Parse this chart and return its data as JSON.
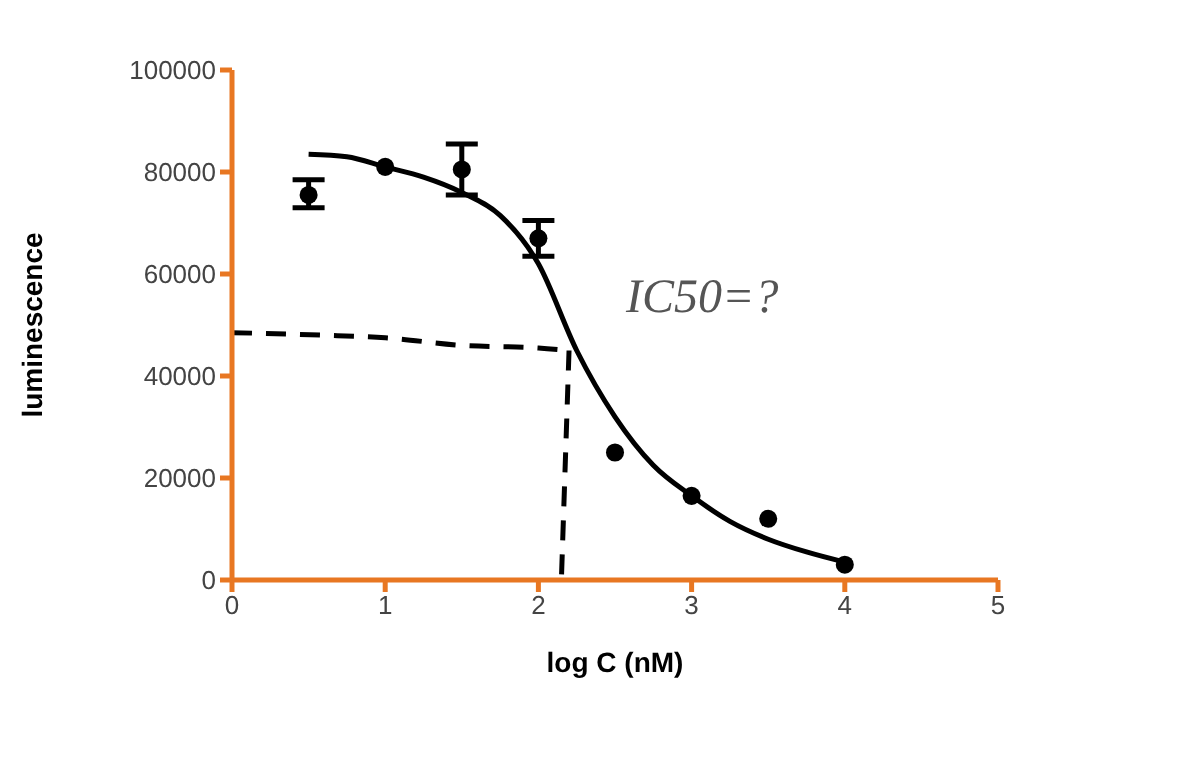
{
  "chart_data": {
    "type": "scatter",
    "xlabel": "log C (nM)",
    "ylabel": "luminescence",
    "xlim": [
      0,
      5
    ],
    "xticks": [
      0,
      1,
      2,
      3,
      4,
      5
    ],
    "ylim": [
      0,
      100000
    ],
    "yticks": [
      0,
      20000,
      40000,
      60000,
      80000,
      100000
    ],
    "grid": false,
    "legend": false,
    "color": "#e87722",
    "annotations": [
      "IC50=?"
    ],
    "series": [
      {
        "color": "#000000",
        "marker": "circle",
        "x": [
          0.5,
          1,
          1.5,
          2,
          2.5,
          3,
          3.5,
          4
        ],
        "values": [
          75500,
          81000,
          80500,
          67000,
          25000,
          16500,
          12000,
          3000
        ],
        "errors": [
          [
            73000,
            78500
          ],
          null,
          [
            75500,
            85500
          ],
          [
            63500,
            70500
          ],
          null,
          null,
          null,
          null
        ]
      },
      {
        "type": "line",
        "color": "#000000",
        "marker": "none",
        "line_style": "solid",
        "x": [
          0.5,
          0.75,
          1,
          1.25,
          1.5,
          1.75,
          2,
          2.25,
          2.5,
          2.75,
          3,
          3.25,
          3.5,
          3.75,
          4
        ],
        "values": [
          83500,
          83000,
          81000,
          79000,
          76000,
          71500,
          62000,
          45000,
          32000,
          22500,
          16500,
          11500,
          8000,
          5500,
          3500
        ]
      },
      {
        "type": "line",
        "color": "#000000",
        "marker": "none",
        "line_style": "dashed",
        "x": [
          0,
          0.6,
          1,
          1.5,
          2,
          2.2
        ],
        "values": [
          48500,
          48000,
          47500,
          46000,
          45500,
          45000
        ]
      },
      {
        "type": "line",
        "color": "#000000",
        "marker": "none",
        "line_style": "dashed",
        "x": [
          2.2,
          2.15
        ],
        "values": [
          45000,
          0
        ]
      }
    ]
  }
}
